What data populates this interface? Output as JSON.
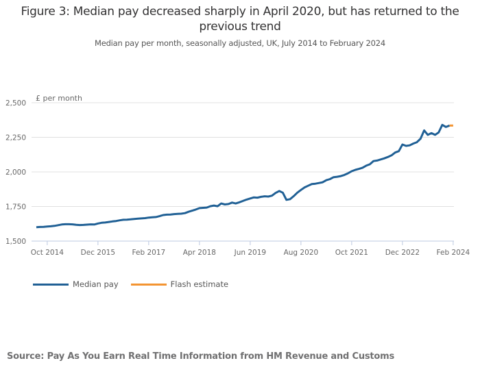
{
  "chart_data": {
    "type": "line",
    "title": "Figure 3: Median pay decreased sharply in April 2020, but has returned to the previous trend",
    "subtitle": "Median pay per month, seasonally adjusted, UK, July 2014 to February 2024",
    "ylabel": "£ per month",
    "xlabel": "",
    "ylim": [
      1500,
      2500
    ],
    "yticks": [
      "1,500",
      "1,750",
      "2,000",
      "2,250",
      "2,500"
    ],
    "ytick_values": [
      1500,
      1750,
      2000,
      2250,
      2500
    ],
    "x_start": "2014-07",
    "xticks": [
      {
        "label": "Oct 2014",
        "month_index": 3
      },
      {
        "label": "Dec 2015",
        "month_index": 17
      },
      {
        "label": "Feb 2017",
        "month_index": 31
      },
      {
        "label": "Apr 2018",
        "month_index": 45
      },
      {
        "label": "Jun 2019",
        "month_index": 59
      },
      {
        "label": "Aug 2020",
        "month_index": 73
      },
      {
        "label": "Oct 2021",
        "month_index": 87
      },
      {
        "label": "Dec 2022",
        "month_index": 101
      },
      {
        "label": "Feb 2024",
        "month_index": 115
      }
    ],
    "grid": true,
    "legend_position": "bottom-left",
    "series": [
      {
        "name": "Median pay",
        "color": "#206095",
        "start_index": 0,
        "values": [
          1600,
          1602,
          1603,
          1605,
          1607,
          1610,
          1615,
          1620,
          1622,
          1622,
          1621,
          1618,
          1616,
          1617,
          1619,
          1621,
          1620,
          1627,
          1632,
          1634,
          1638,
          1642,
          1645,
          1650,
          1654,
          1655,
          1657,
          1660,
          1662,
          1664,
          1666,
          1670,
          1672,
          1674,
          1680,
          1688,
          1691,
          1692,
          1695,
          1697,
          1698,
          1702,
          1712,
          1720,
          1728,
          1738,
          1740,
          1742,
          1752,
          1757,
          1752,
          1772,
          1765,
          1768,
          1778,
          1772,
          1780,
          1790,
          1800,
          1808,
          1816,
          1814,
          1820,
          1824,
          1822,
          1828,
          1848,
          1862,
          1850,
          1798,
          1803,
          1825,
          1850,
          1870,
          1888,
          1900,
          1912,
          1915,
          1920,
          1925,
          1940,
          1948,
          1962,
          1965,
          1970,
          1978,
          1990,
          2005,
          2015,
          2022,
          2030,
          2045,
          2055,
          2078,
          2082,
          2090,
          2098,
          2108,
          2120,
          2140,
          2150,
          2198,
          2188,
          2192,
          2205,
          2215,
          2240,
          2300,
          2268,
          2280,
          2268,
          2285,
          2340,
          2325,
          2335
        ]
      },
      {
        "name": "Flash estimate",
        "color": "#F39431",
        "start_index": 114,
        "values": [
          2335,
          2335
        ]
      }
    ]
  },
  "source": "Source: Pay As You Earn Real Time Information from HM Revenue and Customs"
}
